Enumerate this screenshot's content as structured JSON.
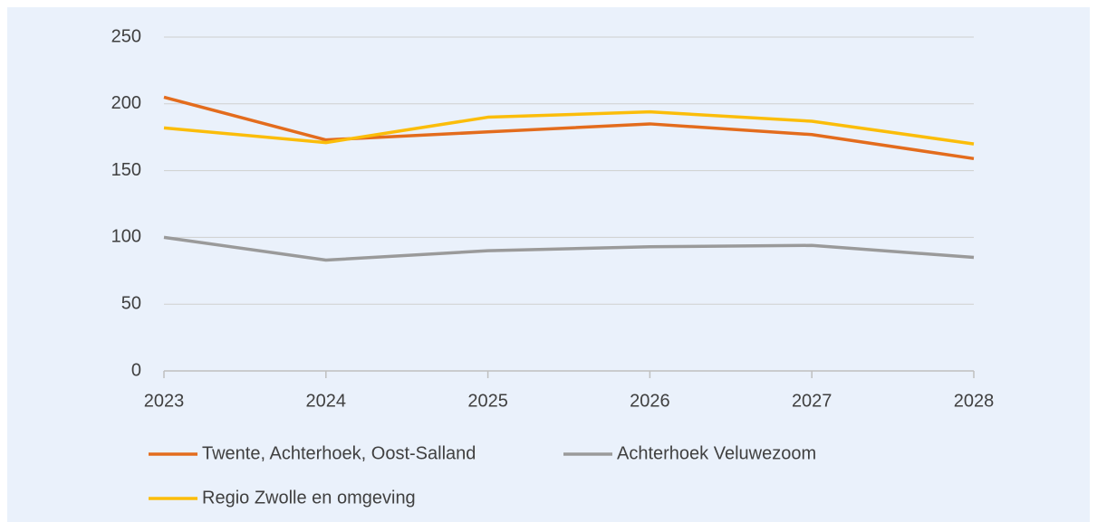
{
  "chart_data": {
    "type": "line",
    "x": [
      2023,
      2024,
      2025,
      2026,
      2027,
      2028
    ],
    "xlim": [
      2023,
      2028
    ],
    "xticks": [
      2023,
      2024,
      2025,
      2026,
      2027,
      2028
    ],
    "ylim": [
      0,
      250
    ],
    "yticks": [
      0,
      50,
      100,
      150,
      200,
      250
    ],
    "grid": true,
    "legend": "bottom",
    "series": [
      {
        "name": "Twente, Achterhoek, Oost-Salland",
        "color": "#e36c1d",
        "values": [
          205,
          173,
          179,
          185,
          177,
          159
        ]
      },
      {
        "name": "Achterhoek Veluwezoom",
        "color": "#9a9a9a",
        "values": [
          100,
          83,
          90,
          93,
          94,
          85
        ]
      },
      {
        "name": "Regio Zwolle en omgeving",
        "color": "#fbbd0a",
        "values": [
          182,
          171,
          190,
          194,
          187,
          170
        ]
      }
    ]
  }
}
